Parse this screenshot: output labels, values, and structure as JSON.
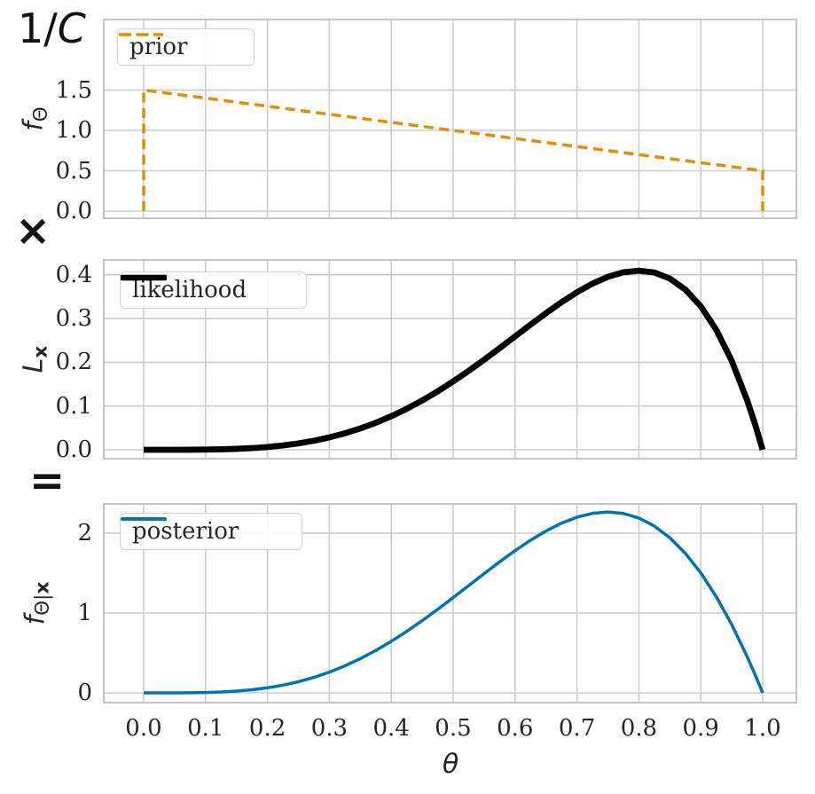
{
  "figure": {
    "annotations": {
      "normalizer": {
        "pre": "1/",
        "var": "C"
      },
      "times": "×",
      "equals": "="
    },
    "colors": {
      "prior": "#de8f05",
      "likelihood": "#000000",
      "posterior": "#0173b2",
      "grid": "#cdcdcd",
      "spine": "#c5c5c5",
      "text": "#262626"
    }
  },
  "chart_data": [
    {
      "id": "prior",
      "type": "line",
      "legend_label": "prior",
      "legend_position": "upper left",
      "color": "#de8f05",
      "line_style": "dashed",
      "line_width": 3.5,
      "ylabel": {
        "base": "f",
        "sub_plain": "Θ",
        "sub_bold": ""
      },
      "x": [
        0,
        0,
        1,
        1
      ],
      "y": [
        0,
        1.5,
        0.5,
        0
      ],
      "xlim": [
        -0.0659,
        1.0559
      ],
      "ylim": [
        -0.099,
        2.385
      ],
      "xticks": [
        0,
        0.1,
        0.2,
        0.3,
        0.4,
        0.5,
        0.6,
        0.7,
        0.8,
        0.9,
        1.0
      ],
      "xtick_labels": [],
      "yticks": [
        0,
        0.5,
        1.0,
        1.5
      ],
      "ytick_labels": [
        "0.0",
        "0.5",
        "1.0",
        "1.5"
      ],
      "grid": true
    },
    {
      "id": "likelihood",
      "type": "line",
      "legend_label": "likelihood",
      "legend_position": "upper left",
      "color": "#000000",
      "line_style": "solid",
      "line_width": 6.8,
      "ylabel": {
        "base": "L",
        "sub_plain": "",
        "sub_bold": "x"
      },
      "x": [
        0,
        0.025,
        0.05,
        0.075,
        0.1,
        0.125,
        0.15,
        0.175,
        0.2,
        0.225,
        0.25,
        0.275,
        0.3,
        0.325,
        0.35,
        0.375,
        0.4,
        0.425,
        0.45,
        0.475,
        0.5,
        0.525,
        0.55,
        0.575,
        0.6,
        0.625,
        0.65,
        0.675,
        0.7,
        0.725,
        0.75,
        0.775,
        0.8,
        0.825,
        0.85,
        0.875,
        0.9,
        0.925,
        0.95,
        0.975,
        0.9875,
        1
      ],
      "y": [
        0,
        0,
        0,
        0.0001,
        0.0005,
        0.0011,
        0.0022,
        0.0039,
        0.0064,
        0.0099,
        0.0146,
        0.0207,
        0.0284,
        0.0377,
        0.0488,
        0.0618,
        0.0768,
        0.0938,
        0.1128,
        0.1336,
        0.1563,
        0.1804,
        0.2059,
        0.2323,
        0.2592,
        0.2861,
        0.3124,
        0.3373,
        0.3602,
        0.3799,
        0.3955,
        0.4058,
        0.4096,
        0.4053,
        0.3915,
        0.3664,
        0.3281,
        0.2745,
        0.2036,
        0.113,
        0.0594,
        0
      ],
      "xlim": [
        -0.0659,
        1.0559
      ],
      "ylim": [
        -0.0223,
        0.4361
      ],
      "xticks": [
        0,
        0.1,
        0.2,
        0.3,
        0.4,
        0.5,
        0.6,
        0.7,
        0.8,
        0.9,
        1.0
      ],
      "xtick_labels": [],
      "yticks": [
        0,
        0.1,
        0.2,
        0.3,
        0.4
      ],
      "ytick_labels": [
        "0.0",
        "0.1",
        "0.2",
        "0.3",
        "0.4"
      ],
      "grid": true
    },
    {
      "id": "posterior",
      "type": "line",
      "legend_label": "posterior",
      "legend_position": "upper left",
      "color": "#0173b2",
      "line_style": "solid",
      "line_width": 3.5,
      "ylabel": {
        "base": "f",
        "sub_plain": "Θ|",
        "sub_bold": "x"
      },
      "xlabel": "θ",
      "x": [
        0,
        0.025,
        0.05,
        0.075,
        0.1,
        0.125,
        0.15,
        0.175,
        0.2,
        0.225,
        0.25,
        0.275,
        0.3,
        0.325,
        0.35,
        0.375,
        0.4,
        0.425,
        0.45,
        0.475,
        0.5,
        0.525,
        0.55,
        0.575,
        0.6,
        0.625,
        0.65,
        0.675,
        0.7,
        0.725,
        0.75,
        0.775,
        0.8,
        0.825,
        0.85,
        0.875,
        0.9,
        0.925,
        0.95,
        0.975,
        0.9875,
        1
      ],
      "y": [
        0,
        0,
        0.0003,
        0.0016,
        0.0048,
        0.0112,
        0.0222,
        0.0391,
        0.0635,
        0.0967,
        0.1398,
        0.1939,
        0.2598,
        0.3379,
        0.4283,
        0.5309,
        0.6451,
        0.77,
        0.9042,
        1.046,
        1.1932,
        1.3433,
        1.4935,
        1.6407,
        1.7813,
        1.9116,
        2.0276,
        2.1253,
        2.2003,
        2.2482,
        2.2651,
        2.2471,
        2.1894,
        2.0893,
        1.9433,
        1.7484,
        1.5031,
        1.2054,
        0.8552,
        0.4529,
        0.2326,
        0
      ],
      "xlim": [
        -0.0659,
        1.0559
      ],
      "ylim": [
        -0.1333,
        2.3778
      ],
      "xticks": [
        0,
        0.1,
        0.2,
        0.3,
        0.4,
        0.5,
        0.6,
        0.7,
        0.8,
        0.9,
        1.0
      ],
      "xtick_labels": [
        "0.0",
        "0.1",
        "0.2",
        "0.3",
        "0.4",
        "0.5",
        "0.6",
        "0.7",
        "0.8",
        "0.9",
        "1.0"
      ],
      "yticks": [
        0,
        1,
        2
      ],
      "ytick_labels": [
        "0",
        "1",
        "2"
      ],
      "grid": true
    }
  ]
}
